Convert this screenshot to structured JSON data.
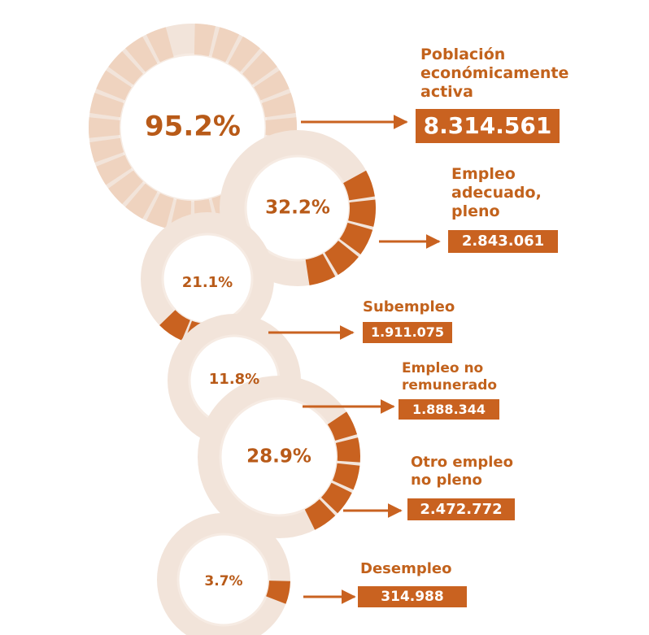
{
  "colors": {
    "accent": "#c96220",
    "text": "#c2621c",
    "percent": "#b85a18",
    "light_ring": "#efd3bf",
    "ring_outline": "#f2e4da"
  },
  "chart_data": {
    "type": "radial-flow",
    "items": [
      {
        "percent_label": "95.2%",
        "value": 95.2,
        "label_lines": [
          "Población",
          "económicamente",
          "activa"
        ],
        "amount": "8.314.561"
      },
      {
        "percent_label": "32.2%",
        "value": 32.2,
        "label_lines": [
          "Empleo",
          "adecuado,",
          "pleno"
        ],
        "amount": "2.843.061"
      },
      {
        "percent_label": "21.1%",
        "value": 21.1,
        "label_lines": [
          "Subempleo"
        ],
        "amount": "1.911.075"
      },
      {
        "percent_label": "11.8%",
        "value": 11.8,
        "label_lines": [
          "Empleo no",
          "remunerado"
        ],
        "amount": "1.888.344"
      },
      {
        "percent_label": "28.9%",
        "value": 28.9,
        "label_lines": [
          "Otro empleo",
          "no pleno"
        ],
        "amount": "2.472.772"
      },
      {
        "percent_label": "3.7%",
        "value": 3.7,
        "label_lines": [
          "Desempleo"
        ],
        "amount": "314.988"
      }
    ]
  }
}
